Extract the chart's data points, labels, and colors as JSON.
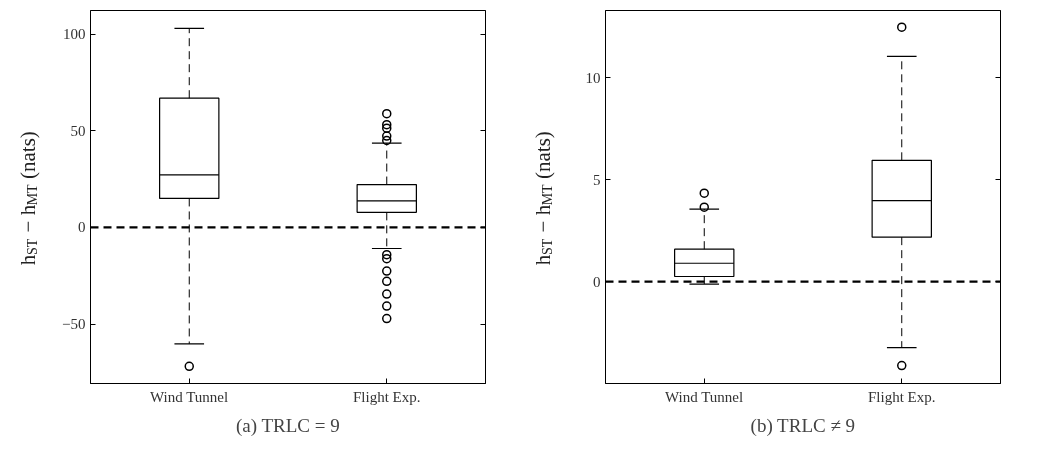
{
  "chart_data": [
    {
      "type": "box",
      "title": "(a) TRLC = 9",
      "ylabel": "h$_{ST}$ − h$_{MT}$ (nats)",
      "categories": [
        "Wind Tunnel",
        "Flight Exp."
      ],
      "ylim": [
        -80.8,
        112.3
      ],
      "yticks": [
        -50,
        0,
        50,
        100
      ],
      "grid": false,
      "marker": "circle",
      "boxes": [
        {
          "low": -60.3,
          "q1": 15,
          "median": 27.2,
          "q3": 66.9,
          "high": 103,
          "outliers": [
            -71.9
          ]
        },
        {
          "low": -10.9,
          "q1": 7.8,
          "median": 13.7,
          "q3": 22.2,
          "high": 43.6,
          "outliers": [
            58.9,
            53.2,
            51.4,
            47.3,
            45.0,
            -14.1,
            -16.2,
            -22.6,
            -27.9,
            -34.5,
            -40.7,
            -47.2
          ]
        }
      ],
      "ref_lines": [
        {
          "axis": "y",
          "value": 0,
          "line_style": "dashed",
          "color": "#000000"
        }
      ]
    },
    {
      "type": "box",
      "title": "(b) TRLC ≠ 9",
      "ylabel": "h$_{ST}$ − h$_{MT}$ (nats)",
      "categories": [
        "Wind Tunnel",
        "Flight Exp."
      ],
      "ylim": [
        -5.0,
        13.3
      ],
      "yticks": [
        0,
        5,
        10
      ],
      "grid": false,
      "marker": "circle",
      "boxes": [
        {
          "low": -0.12,
          "q1": 0.25,
          "median": 0.9,
          "q3": 1.59,
          "high": 3.56,
          "outliers": [
            4.34,
            3.65
          ]
        },
        {
          "low": -3.24,
          "q1": 2.18,
          "median": 3.97,
          "q3": 5.95,
          "high": 11.05,
          "outliers": [
            12.48,
            -4.12
          ]
        }
      ],
      "ref_lines": [
        {
          "axis": "y",
          "value": 0,
          "line_style": "dashed",
          "color": "#000000"
        }
      ]
    }
  ]
}
